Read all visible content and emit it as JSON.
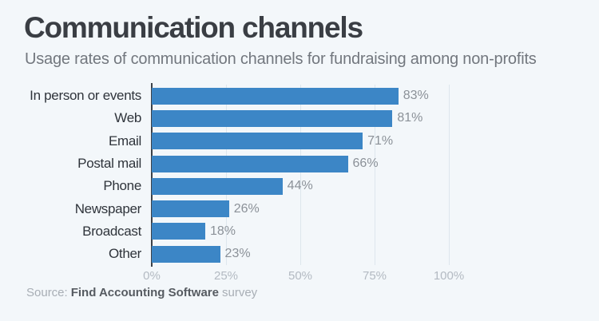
{
  "header": {
    "title": "Communication channels",
    "subtitle": "Usage rates of communication channels for fundraising among non-profits"
  },
  "chart_data": {
    "type": "bar",
    "orientation": "horizontal",
    "title": "Communication channels",
    "subtitle": "Usage rates of communication channels for fundraising among non-profits",
    "categories": [
      "In person or events",
      "Web",
      "Email",
      "Postal mail",
      "Phone",
      "Newspaper",
      "Broadcast",
      "Other"
    ],
    "values": [
      83,
      81,
      71,
      66,
      44,
      26,
      18,
      23
    ],
    "value_labels": [
      "83%",
      "81%",
      "71%",
      "66%",
      "44%",
      "26%",
      "18%",
      "23%"
    ],
    "x_ticks": [
      0,
      25,
      50,
      75,
      100
    ],
    "x_tick_labels": [
      "0%",
      "25%",
      "50%",
      "75%",
      "100%"
    ],
    "xlim": [
      0,
      100
    ],
    "grid": true,
    "legend": false,
    "xlabel": "",
    "ylabel": ""
  },
  "source": {
    "prefix": "Source:",
    "name": "Find Accounting Software",
    "suffix": "survey"
  },
  "colors": {
    "background": "#f3f7fa",
    "bar": "#3c86c6",
    "title": "#3a3e44",
    "subtitle": "#72777e",
    "category_label": "#2f343b",
    "value_label": "#8b9198",
    "tick_label": "#b3bac2",
    "gridline": "#dde6ed",
    "axis_line": "#3c4148"
  }
}
